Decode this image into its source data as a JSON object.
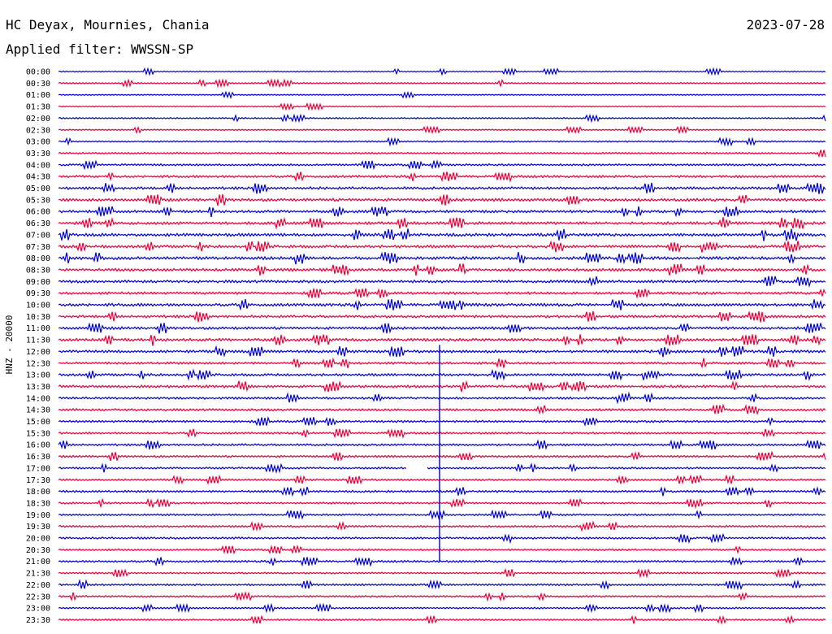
{
  "header": {
    "station": "HC Deyax, Mournies, Chania",
    "date": "2023-07-28",
    "filter": "Applied filter: WWSSN-SP",
    "channel_label": "HNZ - 20000"
  },
  "colors": {
    "odd": "#0000cc",
    "even": "#e8003a"
  },
  "chart_data": {
    "type": "line",
    "title": "HC Deyax, Mournies, Chania",
    "ylabel": "HNZ - 20000",
    "rows": [
      {
        "label": "00:00",
        "activity": 0.2
      },
      {
        "label": "00:30",
        "activity": 0.25
      },
      {
        "label": "01:00",
        "activity": 0.15
      },
      {
        "label": "01:30",
        "activity": 0.2
      },
      {
        "label": "02:00",
        "activity": 0.25
      },
      {
        "label": "02:30",
        "activity": 0.2
      },
      {
        "label": "03:00",
        "activity": 0.3
      },
      {
        "label": "03:30",
        "activity": 0.4
      },
      {
        "label": "04:00",
        "activity": 0.5
      },
      {
        "label": "04:30",
        "activity": 0.6
      },
      {
        "label": "05:00",
        "activity": 0.75
      },
      {
        "label": "05:30",
        "activity": 0.8
      },
      {
        "label": "06:00",
        "activity": 0.7
      },
      {
        "label": "06:30",
        "activity": 0.8
      },
      {
        "label": "07:00",
        "activity": 0.85
      },
      {
        "label": "07:30",
        "activity": 0.8
      },
      {
        "label": "08:00",
        "activity": 0.85
      },
      {
        "label": "08:30",
        "activity": 0.8
      },
      {
        "label": "09:00",
        "activity": 0.75
      },
      {
        "label": "09:30",
        "activity": 0.7
      },
      {
        "label": "10:00",
        "activity": 0.8
      },
      {
        "label": "10:30",
        "activity": 0.75
      },
      {
        "label": "11:00",
        "activity": 0.7
      },
      {
        "label": "11:30",
        "activity": 0.8
      },
      {
        "label": "12:00",
        "activity": 0.75
      },
      {
        "label": "12:30",
        "activity": 0.6
      },
      {
        "label": "13:00",
        "activity": 0.65
      },
      {
        "label": "13:30",
        "activity": 0.7
      },
      {
        "label": "14:00",
        "activity": 0.55
      },
      {
        "label": "14:30",
        "activity": 0.6
      },
      {
        "label": "15:00",
        "activity": 0.55
      },
      {
        "label": "15:30",
        "activity": 0.5
      },
      {
        "label": "16:00",
        "activity": 0.55
      },
      {
        "label": "16:30",
        "activity": 0.5
      },
      {
        "label": "17:00",
        "activity": 0.45
      },
      {
        "label": "17:30",
        "activity": 0.45
      },
      {
        "label": "18:00",
        "activity": 0.5
      },
      {
        "label": "18:30",
        "activity": 0.45
      },
      {
        "label": "19:00",
        "activity": 0.45
      },
      {
        "label": "19:30",
        "activity": 0.45
      },
      {
        "label": "20:00",
        "activity": 0.5
      },
      {
        "label": "20:30",
        "activity": 0.45
      },
      {
        "label": "21:00",
        "activity": 0.5
      },
      {
        "label": "21:30",
        "activity": 0.4
      },
      {
        "label": "22:00",
        "activity": 0.45
      },
      {
        "label": "22:30",
        "activity": 0.4
      },
      {
        "label": "23:00",
        "activity": 0.35
      },
      {
        "label": "23:30",
        "activity": 0.4
      }
    ]
  }
}
